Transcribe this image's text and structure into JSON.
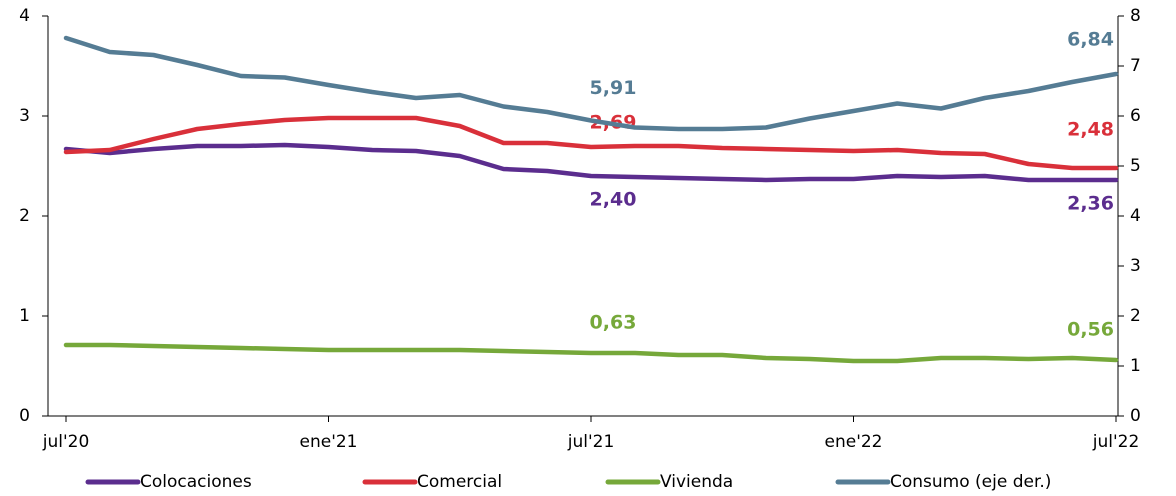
{
  "chart_data": {
    "type": "line",
    "categories": [
      "jul'20",
      null,
      null,
      null,
      null,
      null,
      "ene'21",
      null,
      null,
      null,
      null,
      null,
      "jul'21",
      null,
      null,
      null,
      null,
      null,
      "ene'22",
      null,
      null,
      null,
      null,
      null,
      "jul'22"
    ],
    "ylim": [
      0,
      4
    ],
    "yticks": [
      0,
      1,
      2,
      3,
      4
    ],
    "y2lim": [
      0,
      8
    ],
    "y2ticks": [
      0,
      1,
      2,
      3,
      4,
      5,
      6,
      7,
      8
    ],
    "series": [
      {
        "name": "Colocaciones",
        "color": "#5b2d8e",
        "values": [
          2.67,
          2.63,
          2.67,
          2.7,
          2.7,
          2.71,
          2.69,
          2.66,
          2.65,
          2.6,
          2.47,
          2.45,
          2.4,
          2.39,
          2.38,
          2.37,
          2.36,
          2.37,
          2.37,
          2.4,
          2.39,
          2.4,
          2.36,
          2.36,
          2.36
        ],
        "value_labels": [
          null,
          null,
          null,
          null,
          null,
          null,
          null,
          null,
          null,
          null,
          null,
          null,
          "2,40",
          null,
          null,
          null,
          null,
          null,
          null,
          null,
          null,
          null,
          null,
          null,
          "2,36"
        ]
      },
      {
        "name": "Comercial",
        "color": "#d9303a",
        "values": [
          2.64,
          2.66,
          2.77,
          2.87,
          2.92,
          2.96,
          2.98,
          2.98,
          2.98,
          2.9,
          2.73,
          2.73,
          2.69,
          2.7,
          2.7,
          2.68,
          2.67,
          2.66,
          2.65,
          2.66,
          2.63,
          2.62,
          2.52,
          2.48,
          2.48
        ],
        "value_labels": [
          null,
          null,
          null,
          null,
          null,
          null,
          null,
          null,
          null,
          null,
          null,
          null,
          "2,69",
          null,
          null,
          null,
          null,
          null,
          null,
          null,
          null,
          null,
          null,
          null,
          "2,48"
        ]
      },
      {
        "name": "Vivienda",
        "color": "#76a83a",
        "values": [
          0.71,
          0.71,
          0.7,
          0.69,
          0.68,
          0.67,
          0.66,
          0.66,
          0.66,
          0.66,
          0.65,
          0.64,
          0.63,
          0.63,
          0.61,
          0.61,
          0.58,
          0.57,
          0.55,
          0.55,
          0.58,
          0.58,
          0.57,
          0.58,
          0.56
        ],
        "value_labels": [
          null,
          null,
          null,
          null,
          null,
          null,
          null,
          null,
          null,
          null,
          null,
          null,
          "0,63",
          null,
          null,
          null,
          null,
          null,
          null,
          null,
          null,
          null,
          null,
          null,
          "0,56"
        ]
      },
      {
        "name": "Consumo (eje der.)",
        "color": "#557c94",
        "axis": "y2",
        "values": [
          7.56,
          7.28,
          7.22,
          7.02,
          6.8,
          6.77,
          6.62,
          6.48,
          6.36,
          6.42,
          6.19,
          6.08,
          5.91,
          5.77,
          5.74,
          5.74,
          5.77,
          5.95,
          6.1,
          6.25,
          6.15,
          6.36,
          6.5,
          6.68,
          6.84
        ],
        "value_labels": [
          null,
          null,
          null,
          null,
          null,
          null,
          null,
          null,
          null,
          null,
          null,
          null,
          "5,91",
          null,
          null,
          null,
          null,
          null,
          null,
          null,
          null,
          null,
          null,
          null,
          "6,84"
        ]
      }
    ]
  }
}
